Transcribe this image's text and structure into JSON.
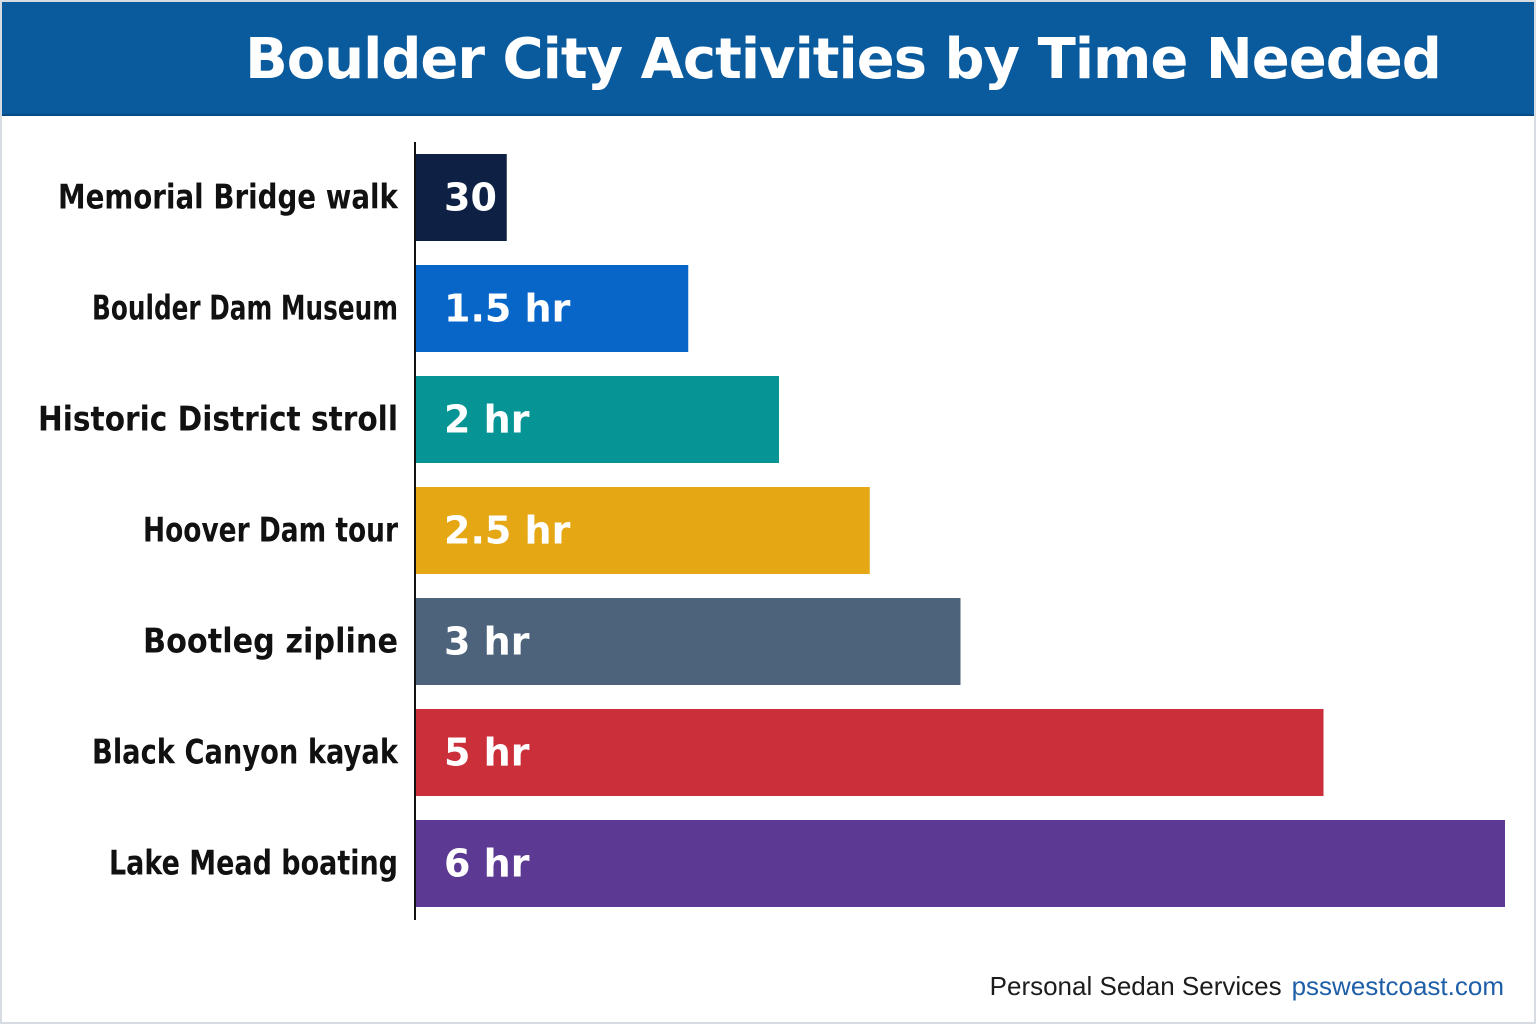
{
  "header": {
    "title": "Boulder City Activities by Time Needed",
    "background": "#0a5a9e"
  },
  "chart_data": {
    "type": "bar",
    "orientation": "horizontal",
    "categories": [
      "Memorial Bridge walk",
      "Boulder Dam Museum",
      "Historic District stroll",
      "Hoover Dam tour",
      "Bootleg zipline",
      "Black Canyon kayak",
      "Lake Mead boating"
    ],
    "values": [
      0.5,
      1.5,
      2,
      2.5,
      3,
      5,
      6
    ],
    "unit": "hours",
    "data_labels": [
      "30 min",
      "1.5 hr",
      "2 hr",
      "2.5 hr",
      "3 hr",
      "5 hr",
      "6 hr"
    ],
    "colors": [
      "#0e2144",
      "#0766c8",
      "#069494",
      "#e6a714",
      "#4d637c",
      "#cb2f3a",
      "#5c3a94"
    ],
    "xlim": [
      0,
      6
    ],
    "grid": false,
    "legend": "none"
  },
  "footer": {
    "brand": "Personal Sedan Services",
    "url": "psswestcoast.com"
  }
}
